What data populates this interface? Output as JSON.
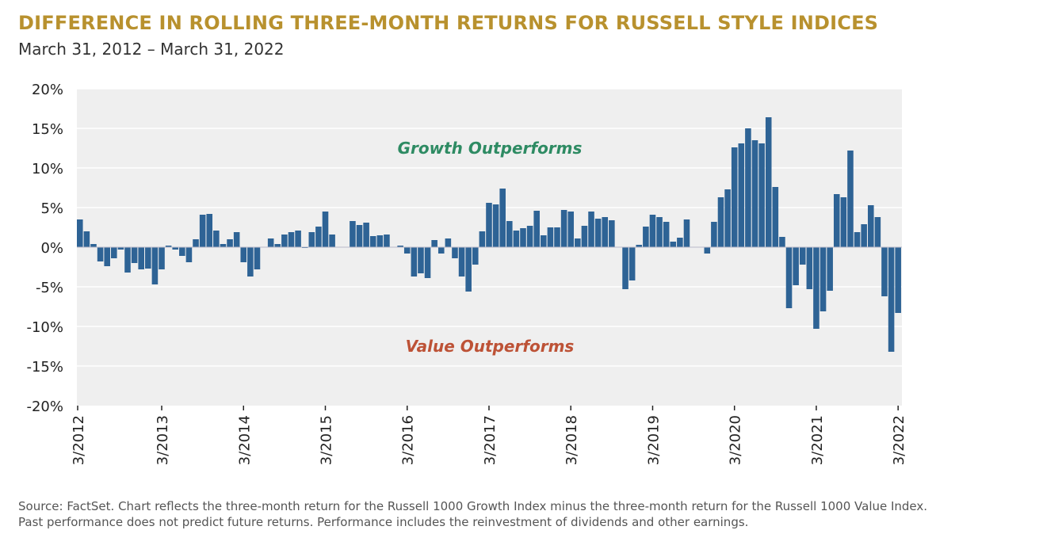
{
  "header": {
    "title": "DIFFERENCE IN ROLLING THREE-MONTH RETURNS FOR RUSSELL STYLE INDICES",
    "subtitle": "March 31, 2012 – March 31, 2022"
  },
  "footer": {
    "source": "Source: FactSet. Chart reflects the three-month return for the Russell 1000 Growth Index minus the three-month return for the Russell 1000 Value Index. Past performance does not predict future returns. Performance includes the reinvestment of dividends and other earnings."
  },
  "colors": {
    "bar": "#2e6395",
    "plot_background": "#efefef",
    "gridline": "#ffffff",
    "growth_label": "#2e8b63",
    "value_label": "#bd5236",
    "title": "#b8912e"
  },
  "chart_data": {
    "type": "bar",
    "title": "DIFFERENCE IN ROLLING THREE-MONTH RETURNS FOR RUSSELL STYLE INDICES",
    "xlabel": "",
    "ylabel": "",
    "ylim": [
      -20,
      20
    ],
    "yticks": [
      20,
      15,
      10,
      5,
      0,
      -5,
      -10,
      -15,
      -20
    ],
    "ytick_labels": [
      "20%",
      "15%",
      "10%",
      "5%",
      "0%",
      "-5%",
      "-10%",
      "-15%",
      "-20%"
    ],
    "xticks": [
      {
        "label": "3/2012",
        "index": 0
      },
      {
        "label": "3/2013",
        "index": 12
      },
      {
        "label": "3/2014",
        "index": 24
      },
      {
        "label": "3/2015",
        "index": 36
      },
      {
        "label": "3/2016",
        "index": 48
      },
      {
        "label": "3/2017",
        "index": 60
      },
      {
        "label": "3/2018",
        "index": 72
      },
      {
        "label": "3/2019",
        "index": 84
      },
      {
        "label": "3/2020",
        "index": 96
      },
      {
        "label": "3/2021",
        "index": 108
      },
      {
        "label": "3/2022",
        "index": 120
      }
    ],
    "annotations": [
      {
        "text": "Growth Outperforms",
        "y": 12.5
      },
      {
        "text": "Value Outperforms",
        "y": -12.5
      }
    ],
    "grid": true,
    "series": [
      {
        "name": "Russell 1000 Growth minus Russell 1000 Value (rolling 3-month return)",
        "values": [
          3.5,
          2.0,
          0.4,
          -1.8,
          -2.4,
          -1.4,
          -0.3,
          -3.2,
          -2.0,
          -2.8,
          -2.7,
          -4.7,
          -2.8,
          0.2,
          -0.3,
          -1.1,
          -1.9,
          1.0,
          4.1,
          4.2,
          2.1,
          0.4,
          1.0,
          1.9,
          -1.9,
          -3.7,
          -2.8,
          0.0,
          1.1,
          0.4,
          1.6,
          1.9,
          2.1,
          -0.1,
          1.9,
          2.6,
          4.5,
          1.6,
          0.0,
          0.0,
          3.3,
          2.8,
          3.1,
          1.4,
          1.5,
          1.6,
          0.0,
          0.2,
          -0.8,
          -3.7,
          -3.3,
          -3.9,
          0.9,
          -0.8,
          1.1,
          -1.4,
          -3.7,
          -5.6,
          -2.2,
          2.0,
          5.6,
          5.4,
          7.4,
          3.3,
          2.1,
          2.4,
          2.7,
          4.6,
          1.5,
          2.5,
          2.5,
          4.7,
          4.5,
          1.1,
          2.7,
          4.5,
          3.6,
          3.8,
          3.4,
          0.0,
          -5.3,
          -4.2,
          0.3,
          2.6,
          4.1,
          3.8,
          3.2,
          0.7,
          1.2,
          3.5,
          0.0,
          0.0,
          -0.8,
          3.2,
          6.3,
          7.3,
          12.6,
          13.1,
          15.0,
          13.5,
          13.1,
          16.4,
          7.6,
          1.3,
          -7.7,
          -4.8,
          -2.2,
          -5.3,
          -10.3,
          -8.1,
          -5.5,
          6.7,
          6.3,
          12.2,
          1.9,
          2.9,
          5.3,
          3.8,
          -6.2,
          -13.2,
          -8.3
        ]
      }
    ]
  }
}
